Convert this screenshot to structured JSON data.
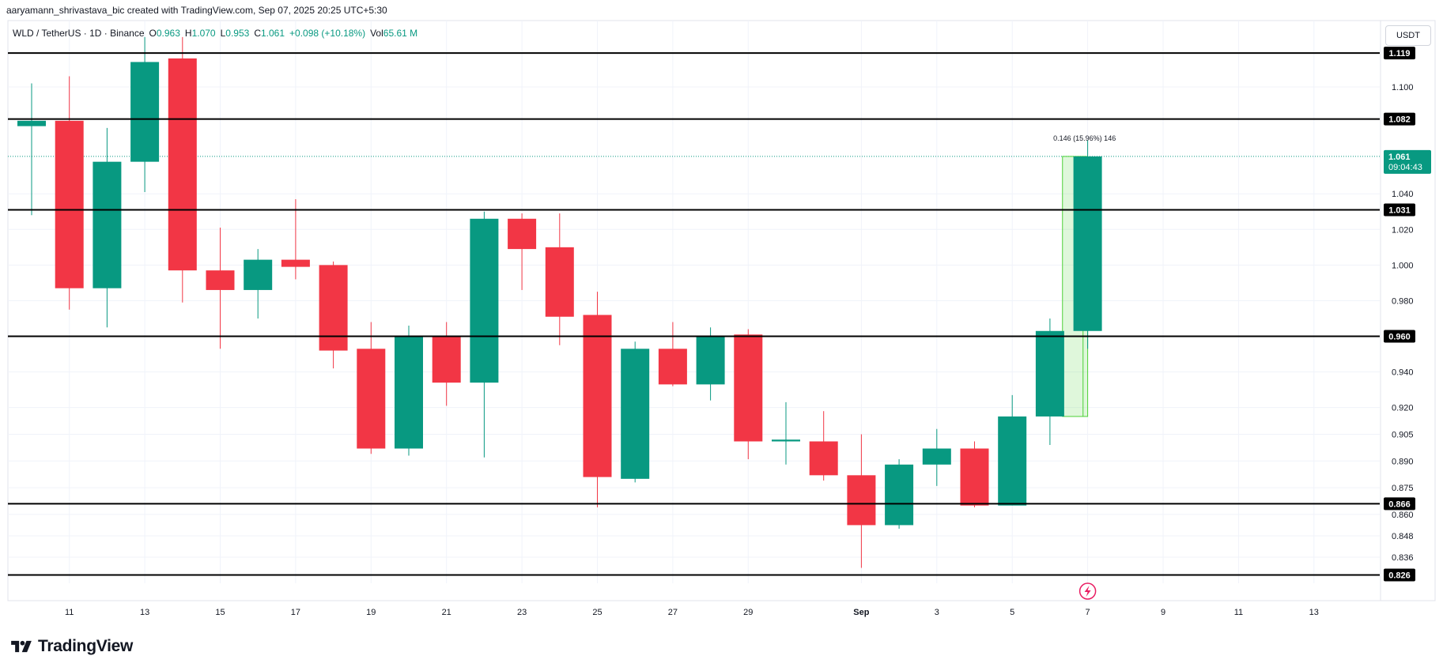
{
  "credit": "aaryamann_shrivastava_bic created with TradingView.com, Sep 07, 2025 20:25 UTC+5:30",
  "legend": {
    "symbol": "WLD / TetherUS · 1D · Binance",
    "open_label": "O",
    "open": "0.963",
    "high_label": "H",
    "high": "1.070",
    "low_label": "L",
    "low": "0.953",
    "close_label": "C",
    "close": "1.061",
    "change": "+0.098 (+10.18%)",
    "vol_label": "Vol",
    "vol": "65.61 M"
  },
  "currency": "USDT",
  "brand": {
    "name": "TradingView",
    "logo_icon": "tradingview-logo-icon"
  },
  "colors": {
    "up": "#089981",
    "down": "#f23645",
    "line": "#000000",
    "measure": "#4cd137",
    "price_line": "#089981",
    "lightning": "#e91e63"
  },
  "chart_data": {
    "type": "candlestick",
    "y_ticks": [
      "1.100",
      "1.040",
      "1.020",
      "1.000",
      "0.980",
      "0.940",
      "0.920",
      "0.905",
      "0.890",
      "0.875",
      "0.860",
      "0.848",
      "0.836"
    ],
    "y_tick_values": [
      1.1,
      1.04,
      1.02,
      1.0,
      0.98,
      0.94,
      0.92,
      0.905,
      0.89,
      0.875,
      0.86,
      0.848,
      0.836
    ],
    "x_ticks": [
      {
        "label": "11",
        "index": 1
      },
      {
        "label": "13",
        "index": 3
      },
      {
        "label": "15",
        "index": 5
      },
      {
        "label": "17",
        "index": 7
      },
      {
        "label": "19",
        "index": 9
      },
      {
        "label": "21",
        "index": 11
      },
      {
        "label": "23",
        "index": 13
      },
      {
        "label": "25",
        "index": 15
      },
      {
        "label": "27",
        "index": 17
      },
      {
        "label": "29",
        "index": 19
      },
      {
        "label": "Sep",
        "index": 22,
        "bold": true
      },
      {
        "label": "3",
        "index": 24
      },
      {
        "label": "5",
        "index": 26
      },
      {
        "label": "7",
        "index": 28
      },
      {
        "label": "9",
        "index": 30
      },
      {
        "label": "11",
        "index": 32
      },
      {
        "label": "13",
        "index": 34
      }
    ],
    "candles": [
      {
        "o": 1.078,
        "h": 1.102,
        "l": 1.028,
        "c": 1.081
      },
      {
        "o": 1.081,
        "h": 1.106,
        "l": 0.975,
        "c": 0.987
      },
      {
        "o": 0.987,
        "h": 1.077,
        "l": 0.965,
        "c": 1.058
      },
      {
        "o": 1.058,
        "h": 1.128,
        "l": 1.041,
        "c": 1.114
      },
      {
        "o": 1.116,
        "h": 1.128,
        "l": 0.979,
        "c": 0.997
      },
      {
        "o": 0.997,
        "h": 1.021,
        "l": 0.953,
        "c": 0.986
      },
      {
        "o": 0.986,
        "h": 1.009,
        "l": 0.97,
        "c": 1.003
      },
      {
        "o": 1.003,
        "h": 1.037,
        "l": 0.992,
        "c": 0.999
      },
      {
        "o": 1.0,
        "h": 1.002,
        "l": 0.942,
        "c": 0.952
      },
      {
        "o": 0.953,
        "h": 0.968,
        "l": 0.894,
        "c": 0.897
      },
      {
        "o": 0.897,
        "h": 0.966,
        "l": 0.893,
        "c": 0.96
      },
      {
        "o": 0.96,
        "h": 0.968,
        "l": 0.921,
        "c": 0.934
      },
      {
        "o": 0.934,
        "h": 1.03,
        "l": 0.892,
        "c": 1.026
      },
      {
        "o": 1.026,
        "h": 1.029,
        "l": 0.986,
        "c": 1.009
      },
      {
        "o": 1.01,
        "h": 1.029,
        "l": 0.955,
        "c": 0.971
      },
      {
        "o": 0.972,
        "h": 0.985,
        "l": 0.864,
        "c": 0.881
      },
      {
        "o": 0.88,
        "h": 0.957,
        "l": 0.878,
        "c": 0.953
      },
      {
        "o": 0.953,
        "h": 0.968,
        "l": 0.932,
        "c": 0.933
      },
      {
        "o": 0.933,
        "h": 0.965,
        "l": 0.924,
        "c": 0.96
      },
      {
        "o": 0.961,
        "h": 0.964,
        "l": 0.891,
        "c": 0.901
      },
      {
        "o": 0.901,
        "h": 0.923,
        "l": 0.888,
        "c": 0.902
      },
      {
        "o": 0.901,
        "h": 0.918,
        "l": 0.879,
        "c": 0.882
      },
      {
        "o": 0.882,
        "h": 0.905,
        "l": 0.83,
        "c": 0.854
      },
      {
        "o": 0.854,
        "h": 0.891,
        "l": 0.852,
        "c": 0.888
      },
      {
        "o": 0.888,
        "h": 0.908,
        "l": 0.876,
        "c": 0.897
      },
      {
        "o": 0.897,
        "h": 0.901,
        "l": 0.864,
        "c": 0.865
      },
      {
        "o": 0.865,
        "h": 0.927,
        "l": 0.865,
        "c": 0.915
      },
      {
        "o": 0.915,
        "h": 0.97,
        "l": 0.899,
        "c": 0.963
      },
      {
        "o": 0.963,
        "h": 1.07,
        "l": 0.953,
        "c": 1.061
      }
    ],
    "levels": [
      {
        "value": 1.119,
        "label": "1.119"
      },
      {
        "value": 1.082,
        "label": "1.082"
      },
      {
        "value": 1.031,
        "label": "1.031"
      },
      {
        "value": 0.96,
        "label": "0.960"
      },
      {
        "value": 0.866,
        "label": "0.866"
      },
      {
        "value": 0.826,
        "label": "0.826"
      }
    ],
    "last_price": {
      "value": 1.061,
      "label": "1.061",
      "countdown": "09:04:43"
    },
    "measure": {
      "from": 0.915,
      "to": 1.061,
      "from_index": 27.5,
      "to_index": 28,
      "label": "0.146 (15.96%) 146"
    },
    "event_marker": {
      "index": 28,
      "icon": "lightning-icon"
    }
  }
}
